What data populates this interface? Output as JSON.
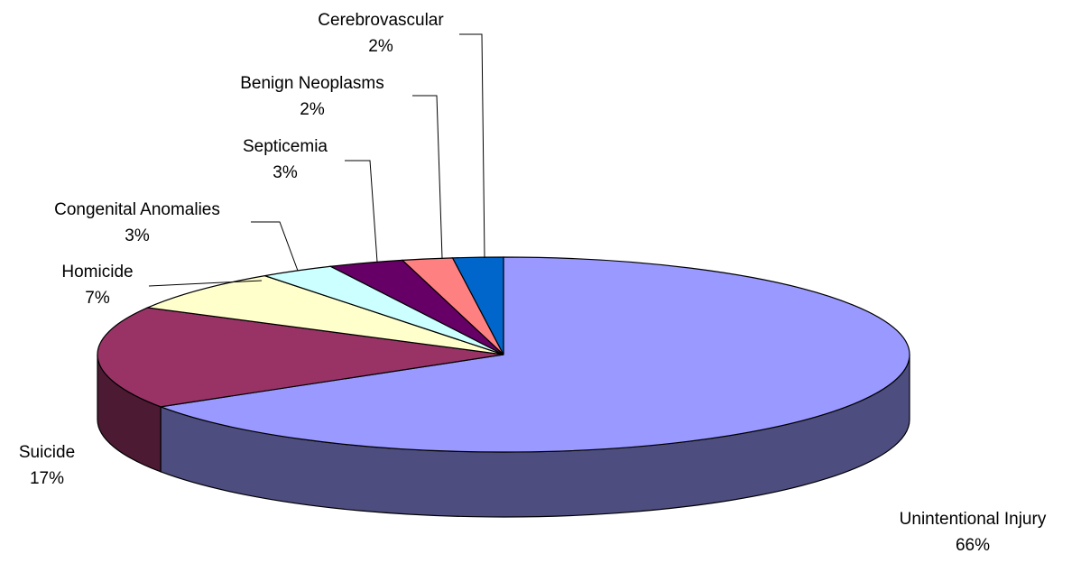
{
  "chart_data": {
    "type": "pie3d",
    "categories": [
      "Unintentional Injury",
      "Suicide",
      "Homicide",
      "Congenital Anomalies",
      "Septicemia",
      "Benign Neoplasms",
      "Cerebrovascular"
    ],
    "values": [
      66,
      17,
      7,
      3,
      3,
      2,
      2
    ],
    "value_labels": [
      "66%",
      "17%",
      "7%",
      "3%",
      "3%",
      "2%",
      "2%"
    ],
    "colors": [
      "#9999ff",
      "#993366",
      "#ffffcc",
      "#ccffff",
      "#660066",
      "#ff8080",
      "#0066cc"
    ]
  }
}
